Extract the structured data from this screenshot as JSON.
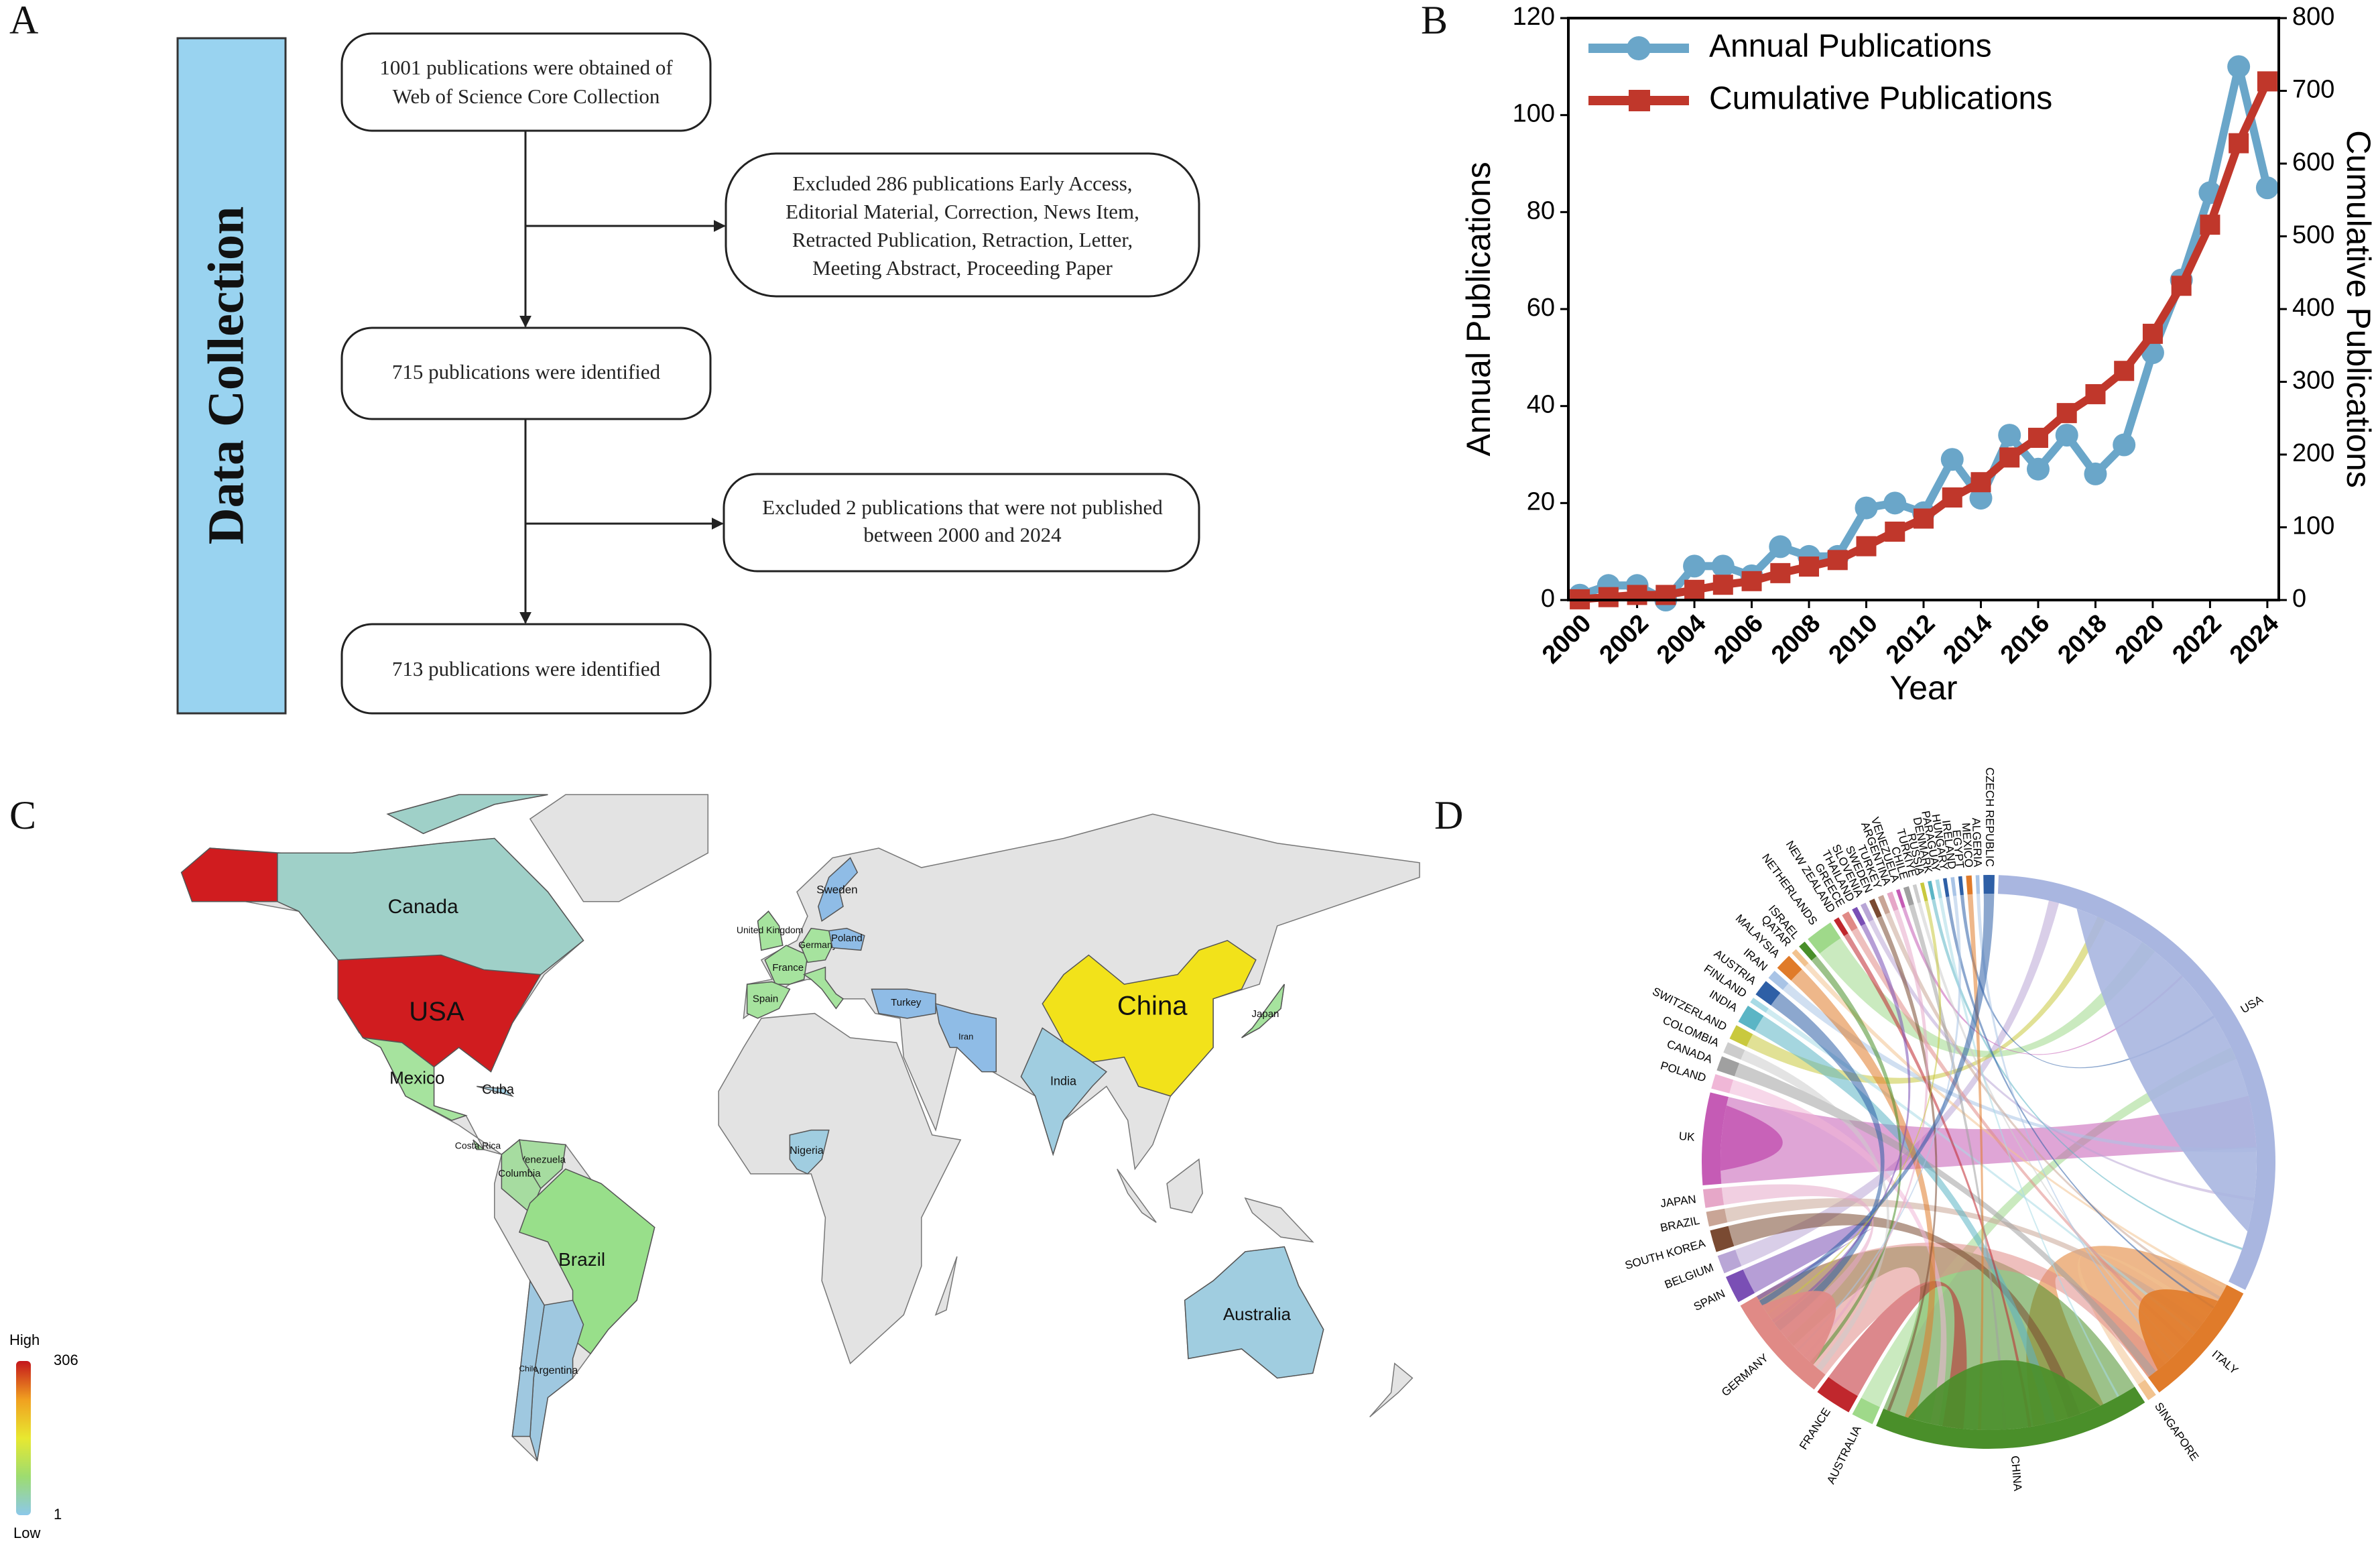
{
  "panel_labels": [
    "A",
    "B",
    "C",
    "D"
  ],
  "flowchart": {
    "side_label": "Data Collection",
    "boxes": [
      [
        "1001  publications were obtained of",
        "Web of Science Core Collection"
      ],
      [
        "Excluded 286 publications Early Access,",
        "Editorial Material,  Correction, News Item,",
        "Retracted Publication, Retraction, Letter,",
        "Meeting Abstract, Proceeding Paper"
      ],
      [
        "715 publications were identified"
      ],
      [
        "Excluded 2 publications that were not published",
        "between 2000 and 2024"
      ],
      [
        "713 publications were identified"
      ]
    ]
  },
  "chart_data": [
    {
      "type": "line",
      "xlabel": "Year",
      "ylabel": "Annual Publications",
      "y2label": "Cumulative Publications",
      "x": [
        2000,
        2001,
        2002,
        2003,
        2004,
        2005,
        2006,
        2007,
        2008,
        2009,
        2010,
        2011,
        2012,
        2013,
        2014,
        2015,
        2016,
        2017,
        2018,
        2019,
        2020,
        2021,
        2022,
        2023,
        2024
      ],
      "series": [
        {
          "name": "Annual Publications",
          "color": "#6aa6c9",
          "marker": "circle",
          "values": [
            1,
            3,
            3,
            0,
            7,
            7,
            5,
            11,
            9,
            9,
            19,
            20,
            18,
            29,
            21,
            34,
            27,
            34,
            26,
            32,
            51,
            66,
            84,
            110,
            85
          ]
        },
        {
          "name": "Cumulative Publications",
          "color": "#c0372b",
          "marker": "square",
          "axis": "y2",
          "values": [
            1,
            4,
            7,
            7,
            14,
            21,
            26,
            37,
            46,
            55,
            74,
            94,
            112,
            141,
            162,
            196,
            223,
            257,
            283,
            315,
            366,
            432,
            516,
            628,
            713
          ]
        }
      ],
      "xlim": [
        1999.6,
        2024.4
      ],
      "xticks": [
        2000,
        2002,
        2004,
        2006,
        2008,
        2010,
        2012,
        2014,
        2016,
        2018,
        2020,
        2022,
        2024
      ],
      "ylim": [
        0,
        120
      ],
      "yticks": [
        0,
        20,
        40,
        60,
        80,
        100,
        120
      ],
      "y2lim": [
        0,
        800
      ],
      "y2ticks": [
        0,
        100,
        200,
        300,
        400,
        500,
        600,
        700,
        800
      ],
      "legend": "upper left"
    },
    {
      "type": "map",
      "countries": [
        {
          "name": "USA",
          "color": "#d01c1f"
        },
        {
          "name": "Canada",
          "color": "#9fd0c8"
        },
        {
          "name": "Mexico",
          "color": "#a6e39e"
        },
        {
          "name": "Cuba",
          "color": "#a9d3e6"
        },
        {
          "name": "Costa Rica",
          "color": "#a6e39e"
        },
        {
          "name": "Venezuela",
          "color": "#a6dca0"
        },
        {
          "name": "Columbia",
          "color": "#a6dca0"
        },
        {
          "name": "Brazil",
          "color": "#98df8a"
        },
        {
          "name": "Argentina",
          "color": "#9fc8e0"
        },
        {
          "name": "Chile",
          "color": "#9fc8e0"
        },
        {
          "name": "Sweden",
          "color": "#8fbce6"
        },
        {
          "name": "United Kingdom",
          "color": "#a6e39e"
        },
        {
          "name": "France",
          "color": "#a6e39e"
        },
        {
          "name": "Spain",
          "color": "#a6e39e"
        },
        {
          "name": "Germany",
          "color": "#a6e39e"
        },
        {
          "name": "Poland",
          "color": "#8fbce6"
        },
        {
          "name": null,
          "color": "#a6e39e"
        },
        {
          "name": "Turkey",
          "color": "#8fbce6"
        },
        {
          "name": "Iran",
          "color": "#8fbce6"
        },
        {
          "name": "India",
          "color": "#a0cde0"
        },
        {
          "name": "China",
          "color": "#f2e21a"
        },
        {
          "name": "Japan",
          "color": "#a6e39e"
        },
        {
          "name": "Nigeria",
          "color": "#a0cde0"
        },
        {
          "name": "Australia",
          "color": "#a0cde0"
        }
      ],
      "land_color": "#e3e3e3",
      "colorbar": {
        "high": "High",
        "low": "Low",
        "max": 306,
        "min": 1,
        "colors": [
          "#c4161c",
          "#f0a020",
          "#e8e830",
          "#9ddc70",
          "#8cc8ea"
        ]
      }
    },
    {
      "type": "chord",
      "categories": [
        "USA",
        "ITALY",
        "SINGAPORE",
        "CHINA",
        "AUSTRALIA",
        "FRANCE",
        "GERMANY",
        "SPAIN",
        "BELGIUM",
        "SOUTH KOREA",
        "BRAZIL",
        "JAPAN",
        "UK",
        "POLAND",
        "CANADA",
        "COLOMBIA",
        "SWITZERLAND",
        "INDIA",
        "FINLAND",
        "AUSTRIA",
        "IRAN",
        "MALAYSIA",
        "QATAR",
        "ISRAEL",
        "NETHERLANDS",
        "NEW ZEALAND",
        "GREECE",
        "THAILAND",
        "SLOVENIA",
        "SWEDEN",
        "TURKEY",
        "ARGENTINA",
        "VENEZUELA",
        "CHILE",
        "TURKIYE",
        "RUSSIA",
        "DENMARK",
        "PARAGUAY",
        "HUNGARY",
        "IRELAND",
        "EGYPT",
        "MEXICO",
        "ALGERIA",
        "CZECH REPUBLIC"
      ],
      "values": [
        306,
        70,
        5,
        150,
        12,
        20,
        60,
        15,
        10,
        12,
        8,
        10,
        50,
        8,
        8,
        6,
        8,
        10,
        3,
        9,
        5,
        9,
        3,
        4,
        15,
        3,
        4,
        3,
        3,
        3,
        3,
        3,
        2,
        3,
        2,
        2,
        2,
        2,
        2,
        2,
        2,
        3,
        2,
        6
      ],
      "colors": [
        "#a9b6e0",
        "#e07b2a",
        "#f2c38f",
        "#4a8f2a",
        "#9fd98a",
        "#c0272d",
        "#e08a86",
        "#7a4fb5",
        "#b9a6d6",
        "#7a4a32",
        "#c9a596",
        "#e6a7c8",
        "#c55bb5",
        "#f0b7d7",
        "#a0a0a0",
        "#cccccc",
        "#c9c93e",
        "#5bb5c5",
        "#a8dbe6",
        "#2e5fa6",
        "#a9c4e6",
        "#e07b2a",
        "#f2c38f",
        "#4a8f2a",
        "#9fd98a",
        "#c0272d",
        "#e08a86",
        "#7a4fb5",
        "#b9a6d6",
        "#7a4a32",
        "#c9a596",
        "#e6a7c8",
        "#c55bb5",
        "#a0a0a0",
        "#cccccc",
        "#c9c93e",
        "#5bb5c5",
        "#a8dbe6",
        "#2e5fa6",
        "#a9c4e6",
        "#2e5fa6",
        "#e07b2a",
        "#a9c4e6",
        "#2e5fa6"
      ]
    }
  ]
}
